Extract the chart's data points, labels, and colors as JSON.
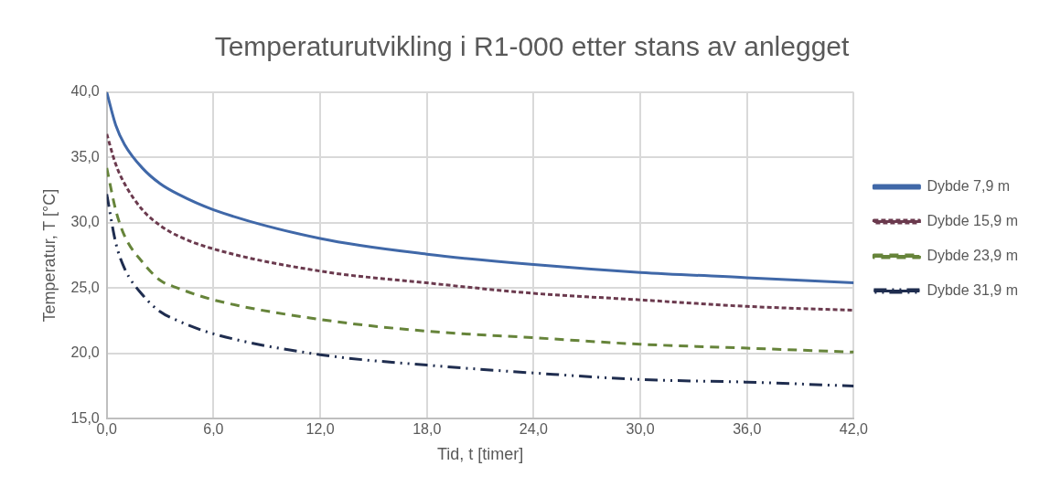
{
  "chart_data": {
    "type": "line",
    "title": "Temperaturutvikling i R1-000 etter stans av anlegget",
    "xlabel": "Tid, t [timer]",
    "ylabel": "Temperatur, T [°C]",
    "x": [
      0,
      0.5,
      1,
      2,
      3,
      4,
      6,
      12,
      18,
      24,
      30,
      36,
      42
    ],
    "series": [
      {
        "name": "Dybde 7,9 m",
        "color": "#4068a8",
        "line_style": "solid",
        "values": [
          40,
          37.5,
          36,
          34.2,
          33,
          32.2,
          31,
          28.8,
          27.6,
          26.8,
          26.2,
          25.8,
          25.4
        ]
      },
      {
        "name": "Dybde 15,9 m",
        "color": "#6b3a4e",
        "line_style": "dotted",
        "values": [
          36.8,
          34.5,
          33,
          31,
          29.8,
          29,
          28,
          26.3,
          25.4,
          24.6,
          24.1,
          23.6,
          23.3
        ]
      },
      {
        "name": "Dybde 23,9 m",
        "color": "#66843a",
        "line_style": "dashed",
        "values": [
          34.2,
          31,
          29,
          27,
          25.6,
          25,
          24.1,
          22.6,
          21.7,
          21.2,
          20.7,
          20.4,
          20.1
        ]
      },
      {
        "name": "Dybde 31,9 m",
        "color": "#1f2d4f",
        "line_style": "dashdot",
        "values": [
          32.2,
          28.5,
          26.5,
          24.5,
          23.2,
          22.5,
          21.5,
          19.9,
          19.1,
          18.5,
          18,
          17.8,
          17.5
        ]
      }
    ],
    "xlim": [
      0,
      42
    ],
    "ylim": [
      15,
      40
    ],
    "xticks": [
      {
        "value": 0,
        "label": "0,0"
      },
      {
        "value": 6,
        "label": "6,0"
      },
      {
        "value": 12,
        "label": "12,0"
      },
      {
        "value": 18,
        "label": "18,0"
      },
      {
        "value": 24,
        "label": "24,0"
      },
      {
        "value": 30,
        "label": "30,0"
      },
      {
        "value": 36,
        "label": "36,0"
      },
      {
        "value": 42,
        "label": "42,0"
      }
    ],
    "yticks": [
      {
        "value": 15,
        "label": "15,0"
      },
      {
        "value": 20,
        "label": "20,0"
      },
      {
        "value": 25,
        "label": "25,0"
      },
      {
        "value": 30,
        "label": "30,0"
      },
      {
        "value": 35,
        "label": "35,0"
      },
      {
        "value": 40,
        "label": "40,0"
      }
    ],
    "grid": true,
    "legend": "right",
    "marker": "none"
  }
}
